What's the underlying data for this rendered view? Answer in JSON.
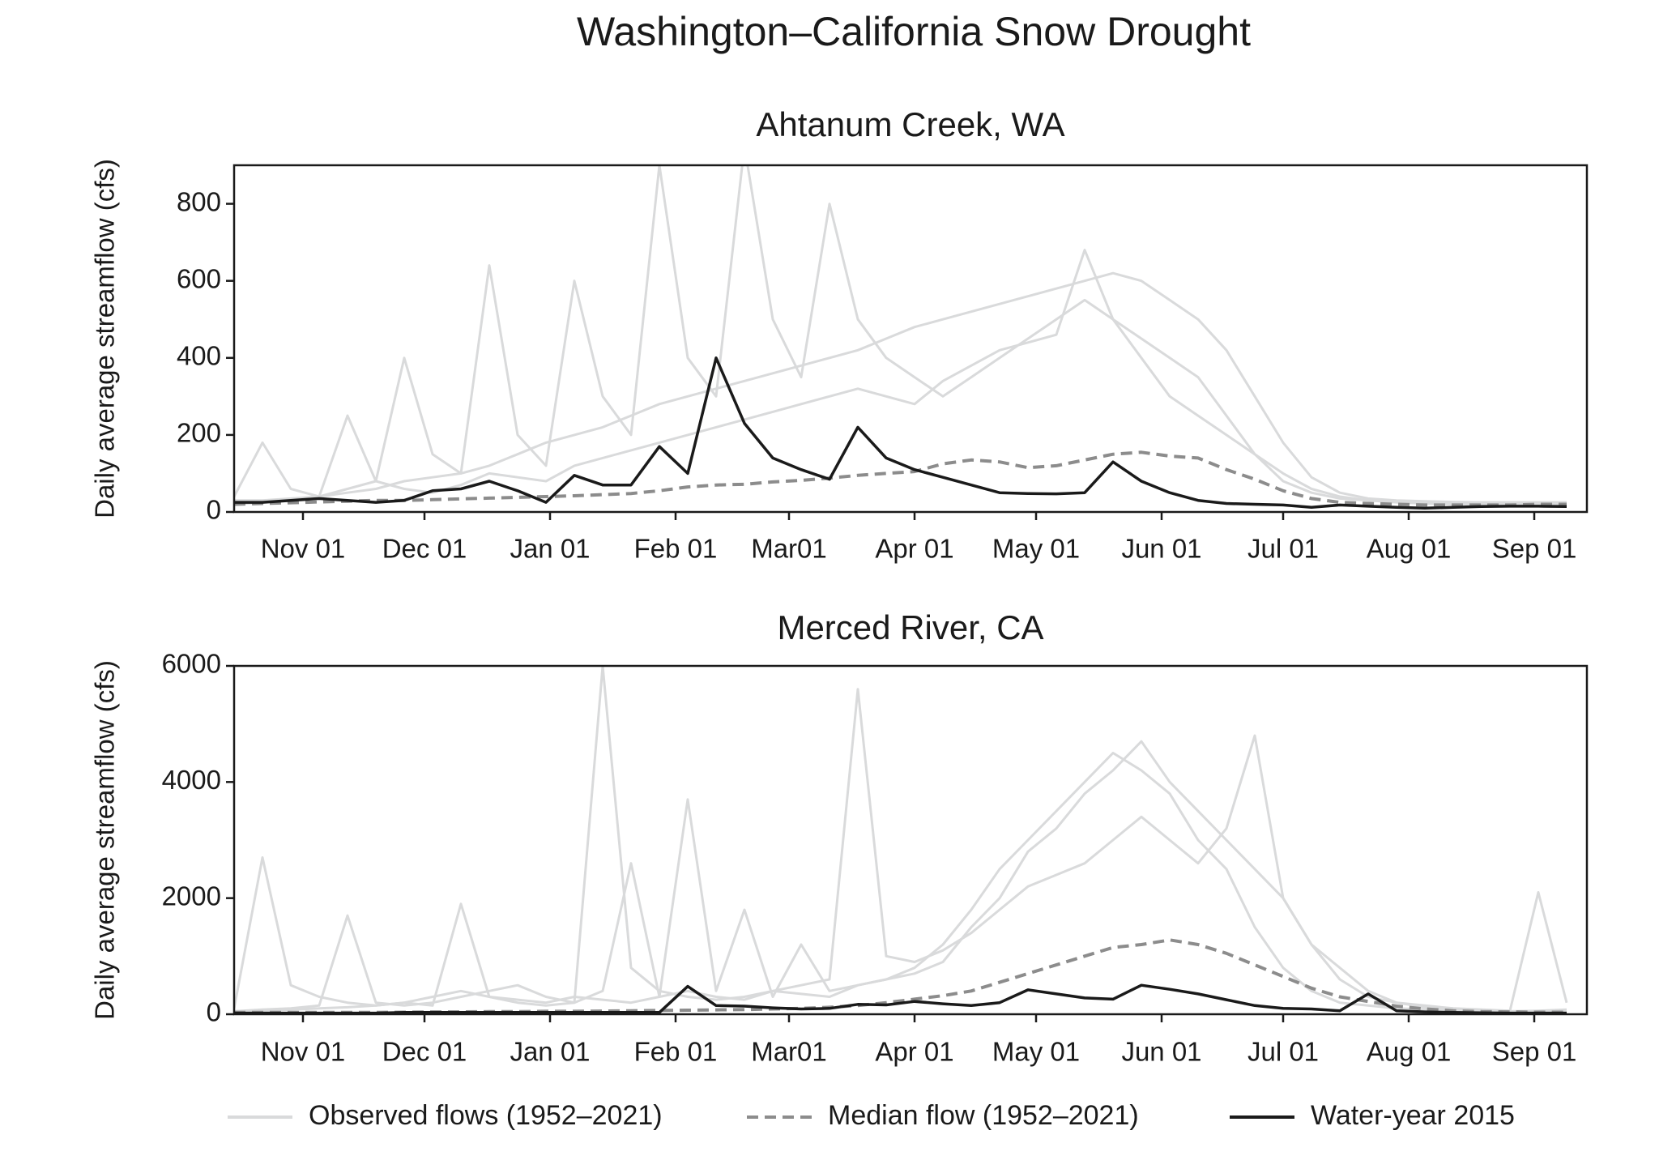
{
  "title": "Washington–California Snow Drought",
  "chart_data": [
    {
      "type": "line",
      "title": "Ahtanum Creek, WA",
      "ylabel": "Daily average streamflow (cfs)",
      "x": [
        14,
        21,
        28,
        35,
        42,
        49,
        56,
        63,
        70,
        77,
        84,
        91,
        98,
        105,
        112,
        119,
        126,
        133,
        140,
        147,
        154,
        161,
        168,
        175,
        182,
        189,
        196,
        203,
        210,
        217,
        224,
        231,
        238,
        245,
        252,
        259,
        266,
        273,
        280,
        287,
        294,
        301,
        308,
        315,
        322,
        329,
        336,
        343
      ],
      "xlim": [
        14,
        348
      ],
      "ylim": [
        0,
        900
      ],
      "xticks": [
        {
          "value": 31,
          "label": "Nov 01"
        },
        {
          "value": 61,
          "label": "Dec 01"
        },
        {
          "value": 92,
          "label": "Jan 01"
        },
        {
          "value": 123,
          "label": "Feb 01"
        },
        {
          "value": 151,
          "label": "Mar01"
        },
        {
          "value": 182,
          "label": "Apr 01"
        },
        {
          "value": 212,
          "label": "May 01"
        },
        {
          "value": 243,
          "label": "Jun 01"
        },
        {
          "value": 273,
          "label": "Jul 01"
        },
        {
          "value": 304,
          "label": "Aug 01"
        },
        {
          "value": 335,
          "label": "Sep 01"
        }
      ],
      "yticks": [
        0,
        200,
        400,
        600,
        800
      ],
      "series": [
        {
          "name": "Observed flows (1952–2021)",
          "color": "#d9dadb",
          "style": "solid",
          "lines": [
            [
              30,
              30,
              35,
              40,
              50,
              60,
              80,
              90,
              100,
              120,
              150,
              180,
              200,
              220,
              250,
              280,
              300,
              320,
              340,
              360,
              380,
              400,
              420,
              450,
              480,
              500,
              520,
              540,
              560,
              580,
              600,
              620,
              600,
              550,
              500,
              420,
              300,
              180,
              90,
              50,
              35,
              30,
              28,
              26,
              25,
              25,
              25,
              25
            ],
            [
              40,
              180,
              60,
              40,
              250,
              80,
              400,
              150,
              100,
              640,
              200,
              120,
              600,
              300,
              200,
              900,
              400,
              300,
              950,
              500,
              350,
              800,
              500,
              400,
              350,
              300,
              350,
              400,
              450,
              500,
              550,
              500,
              450,
              400,
              350,
              250,
              150,
              80,
              50,
              35,
              30,
              28,
              25,
              25,
              25,
              25,
              25,
              25
            ],
            [
              20,
              25,
              30,
              40,
              60,
              80,
              60,
              50,
              70,
              100,
              90,
              80,
              120,
              140,
              160,
              180,
              200,
              220,
              240,
              260,
              280,
              300,
              320,
              300,
              280,
              340,
              380,
              420,
              440,
              460,
              680,
              500,
              400,
              300,
              250,
              200,
              150,
              100,
              60,
              40,
              30,
              25,
              22,
              20,
              20,
              20,
              20,
              20
            ]
          ]
        },
        {
          "name": "Median flow (1952–2021)",
          "color": "#8c8c8c",
          "style": "dashed",
          "values": [
            20,
            22,
            24,
            26,
            28,
            30,
            30,
            32,
            34,
            36,
            38,
            40,
            42,
            45,
            48,
            55,
            65,
            70,
            72,
            78,
            82,
            88,
            95,
            100,
            105,
            125,
            135,
            130,
            115,
            120,
            135,
            150,
            155,
            145,
            140,
            110,
            85,
            55,
            35,
            25,
            22,
            20,
            18,
            18,
            18,
            18,
            20,
            20
          ]
        },
        {
          "name": "Water-year 2015",
          "color": "#1a1a1a",
          "style": "solid",
          "values": [
            25,
            25,
            30,
            35,
            30,
            25,
            30,
            55,
            60,
            80,
            55,
            25,
            95,
            70,
            70,
            170,
            100,
            400,
            230,
            140,
            110,
            85,
            220,
            140,
            110,
            90,
            70,
            50,
            48,
            47,
            50,
            130,
            80,
            50,
            30,
            22,
            20,
            18,
            12,
            18,
            15,
            12,
            10,
            12,
            14,
            15,
            15,
            14
          ]
        }
      ]
    },
    {
      "type": "line",
      "title": "Merced River, CA",
      "ylabel": "Daily average streamflow (cfs)",
      "x": [
        14,
        21,
        28,
        35,
        42,
        49,
        56,
        63,
        70,
        77,
        84,
        91,
        98,
        105,
        112,
        119,
        126,
        133,
        140,
        147,
        154,
        161,
        168,
        175,
        182,
        189,
        196,
        203,
        210,
        217,
        224,
        231,
        238,
        245,
        252,
        259,
        266,
        273,
        280,
        287,
        294,
        301,
        308,
        315,
        322,
        329,
        336,
        343
      ],
      "xlim": [
        14,
        348
      ],
      "ylim": [
        0,
        6000
      ],
      "xticks": [
        {
          "value": 31,
          "label": "Nov 01"
        },
        {
          "value": 61,
          "label": "Dec 01"
        },
        {
          "value": 92,
          "label": "Jan 01"
        },
        {
          "value": 123,
          "label": "Feb 01"
        },
        {
          "value": 151,
          "label": "Mar01"
        },
        {
          "value": 182,
          "label": "Apr 01"
        },
        {
          "value": 212,
          "label": "May 01"
        },
        {
          "value": 243,
          "label": "Jun 01"
        },
        {
          "value": 273,
          "label": "Jul 01"
        },
        {
          "value": 304,
          "label": "Aug 01"
        },
        {
          "value": 335,
          "label": "Sep 01"
        }
      ],
      "yticks": [
        0,
        2000,
        4000,
        6000
      ],
      "series": [
        {
          "color": "#d9dadb",
          "style": "solid",
          "lines": [
            [
              100,
              2700,
              500,
              300,
              200,
              150,
              200,
              150,
              1900,
              300,
              200,
              150,
              200,
              6000,
              800,
              400,
              300,
              250,
              300,
              400,
              350,
              300,
              500,
              600,
              800,
              1200,
              1800,
              2500,
              3000,
              3500,
              4000,
              4500,
              4200,
              3800,
              3000,
              2500,
              1500,
              800,
              400,
              200,
              150,
              100,
              80,
              60,
              50,
              50,
              60,
              80
            ],
            [
              50,
              80,
              100,
              150,
              1700,
              200,
              150,
              200,
              300,
              400,
              500,
              300,
              200,
              400,
              2600,
              300,
              3700,
              400,
              1800,
              300,
              1200,
              400,
              500,
              600,
              700,
              900,
              1500,
              2000,
              2800,
              3200,
              3800,
              4200,
              4700,
              4000,
              3500,
              3000,
              2500,
              2000,
              1200,
              800,
              400,
              200,
              150,
              100,
              80,
              60,
              2100,
              200
            ],
            [
              50,
              60,
              80,
              100,
              120,
              150,
              200,
              300,
              400,
              300,
              250,
              200,
              300,
              250,
              200,
              300,
              400,
              300,
              250,
              400,
              500,
              600,
              5600,
              1000,
              900,
              1100,
              1400,
              1800,
              2200,
              2400,
              2600,
              3000,
              3400,
              3000,
              2600,
              3200,
              4800,
              2000,
              1200,
              600,
              300,
              200,
              120,
              80,
              60,
              50,
              40,
              40
            ]
          ]
        },
        {
          "color": "#8c8c8c",
          "style": "dashed",
          "values": [
            30,
            30,
            30,
            30,
            30,
            30,
            35,
            40,
            40,
            45,
            45,
            50,
            50,
            55,
            60,
            65,
            70,
            75,
            80,
            90,
            100,
            120,
            150,
            200,
            260,
            320,
            400,
            550,
            700,
            850,
            1000,
            1150,
            1200,
            1280,
            1200,
            1050,
            850,
            650,
            450,
            300,
            220,
            140,
            90,
            60,
            45,
            40,
            35,
            35
          ]
        },
        {
          "color": "#1a1a1a",
          "style": "solid",
          "values": [
            20,
            20,
            20,
            20,
            20,
            20,
            30,
            30,
            30,
            30,
            30,
            30,
            30,
            30,
            30,
            30,
            480,
            150,
            140,
            110,
            90,
            100,
            170,
            160,
            220,
            180,
            150,
            200,
            420,
            350,
            280,
            260,
            500,
            430,
            350,
            250,
            150,
            100,
            90,
            60,
            350,
            60,
            40,
            30,
            25,
            20,
            20,
            20
          ]
        }
      ]
    }
  ]
}
